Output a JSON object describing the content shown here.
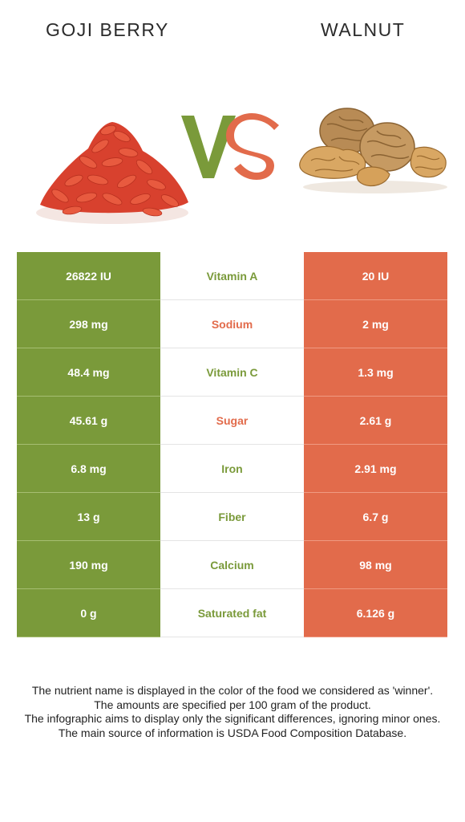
{
  "header": {
    "left_food": "GOJI BERRY",
    "right_food": "WALNUT",
    "vs_label": "VS"
  },
  "colors": {
    "left": "#7a9a3a",
    "right": "#e26b4b"
  },
  "table": {
    "rows": [
      {
        "left": "26822 IU",
        "nutrient": "Vitamin A",
        "right": "20 IU",
        "winner": "left"
      },
      {
        "left": "298 mg",
        "nutrient": "Sodium",
        "right": "2 mg",
        "winner": "right"
      },
      {
        "left": "48.4 mg",
        "nutrient": "Vitamin C",
        "right": "1.3 mg",
        "winner": "left"
      },
      {
        "left": "45.61 g",
        "nutrient": "Sugar",
        "right": "2.61 g",
        "winner": "right"
      },
      {
        "left": "6.8 mg",
        "nutrient": "Iron",
        "right": "2.91 mg",
        "winner": "left"
      },
      {
        "left": "13 g",
        "nutrient": "Fiber",
        "right": "6.7 g",
        "winner": "left"
      },
      {
        "left": "190 mg",
        "nutrient": "Calcium",
        "right": "98 mg",
        "winner": "left"
      },
      {
        "left": "0 g",
        "nutrient": "Saturated fat",
        "right": "6.126 g",
        "winner": "left"
      }
    ]
  },
  "footer": {
    "lines": [
      "The nutrient name is displayed in the color of the food we considered as 'winner'.",
      "The amounts are specified per 100 gram of the product.",
      "The infographic aims to display only the significant differences, ignoring minor ones.",
      "The main source of information is USDA Food Composition Database."
    ]
  }
}
